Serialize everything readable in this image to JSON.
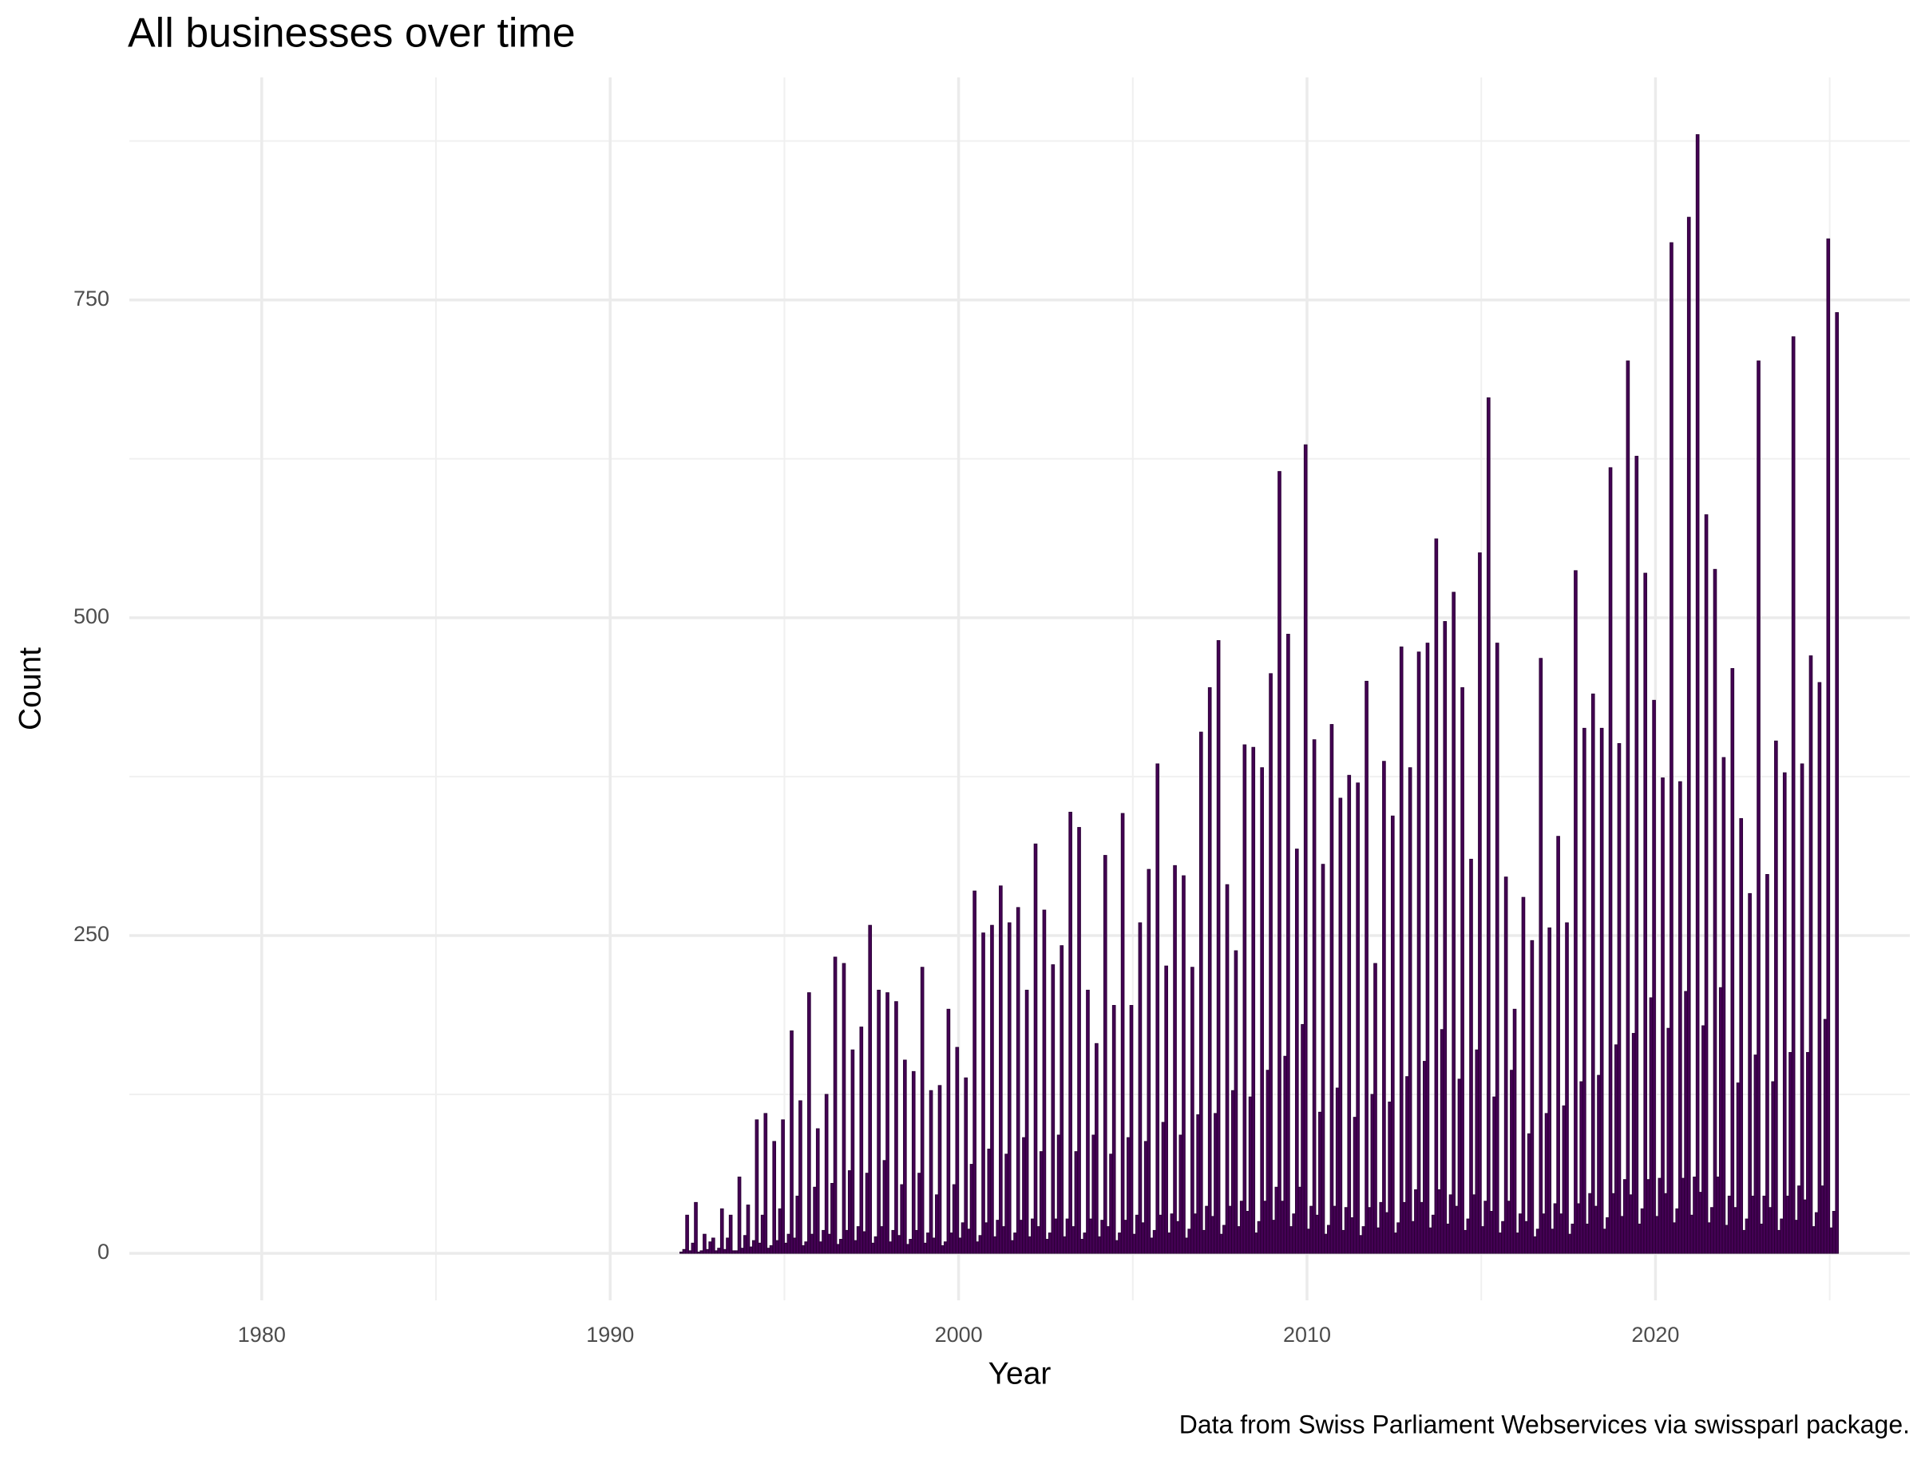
{
  "chart_data": {
    "type": "histogram",
    "title": "All businesses over time",
    "x_label": "Year",
    "y_label": "Count",
    "caption": "Data from Swiss Parliament Webservices via swissparl package.",
    "color": "#440154",
    "edge_color": "#2b0036",
    "grid": true,
    "xlim": [
      1976.2,
      2027.3
    ],
    "ylim": [
      -37,
      925
    ],
    "xticks": [
      1980,
      1990,
      2000,
      2010,
      2020
    ],
    "yticks": [
      0,
      250,
      500,
      750
    ],
    "xminor": [
      1975,
      1985,
      1995,
      2005,
      2015,
      2025
    ],
    "yminor": [
      125,
      375,
      625,
      875
    ],
    "bins": [
      1992,
      1992.0833,
      1992.1667,
      1992.25,
      1992.3333,
      1992.4167,
      1992.5,
      1992.5833,
      1992.6667,
      1992.75,
      1992.8333,
      1992.9167,
      1993,
      1993.0833,
      1993.1667,
      1993.25,
      1993.3333,
      1993.4167,
      1993.5,
      1993.5833,
      1993.6667,
      1993.75,
      1993.8333,
      1993.9167,
      1994,
      1994.0833,
      1994.1667,
      1994.25,
      1994.3333,
      1994.4167,
      1994.5,
      1994.5833,
      1994.6667,
      1994.75,
      1994.8333,
      1994.9167,
      1995,
      1995.0833,
      1995.1667,
      1995.25,
      1995.3333,
      1995.4167,
      1995.5,
      1995.5833,
      1995.6667,
      1995.75,
      1995.8333,
      1995.9167,
      1996,
      1996.0833,
      1996.1667,
      1996.25,
      1996.3333,
      1996.4167,
      1996.5,
      1996.5833,
      1996.6667,
      1996.75,
      1996.8333,
      1996.9167,
      1997,
      1997.0833,
      1997.1667,
      1997.25,
      1997.3333,
      1997.4167,
      1997.5,
      1997.5833,
      1997.6667,
      1997.75,
      1997.8333,
      1997.9167,
      1998,
      1998.0833,
      1998.1667,
      1998.25,
      1998.3333,
      1998.4167,
      1998.5,
      1998.5833,
      1998.6667,
      1998.75,
      1998.8333,
      1998.9167,
      1999,
      1999.0833,
      1999.1667,
      1999.25,
      1999.3333,
      1999.4167,
      1999.5,
      1999.5833,
      1999.6667,
      1999.75,
      1999.8333,
      1999.9167,
      2000,
      2000.0833,
      2000.1667,
      2000.25,
      2000.3333,
      2000.4167,
      2000.5,
      2000.5833,
      2000.6667,
      2000.75,
      2000.8333,
      2000.9167,
      2001,
      2001.0833,
      2001.1667,
      2001.25,
      2001.3333,
      2001.4167,
      2001.5,
      2001.5833,
      2001.6667,
      2001.75,
      2001.8333,
      2001.9167,
      2002,
      2002.0833,
      2002.1667,
      2002.25,
      2002.3333,
      2002.4167,
      2002.5,
      2002.5833,
      2002.6667,
      2002.75,
      2002.8333,
      2002.9167,
      2003,
      2003.0833,
      2003.1667,
      2003.25,
      2003.3333,
      2003.4167,
      2003.5,
      2003.5833,
      2003.6667,
      2003.75,
      2003.8333,
      2003.9167,
      2004,
      2004.0833,
      2004.1667,
      2004.25,
      2004.3333,
      2004.4167,
      2004.5,
      2004.5833,
      2004.6667,
      2004.75,
      2004.8333,
      2004.9167,
      2005,
      2005.0833,
      2005.1667,
      2005.25,
      2005.3333,
      2005.4167,
      2005.5,
      2005.5833,
      2005.6667,
      2005.75,
      2005.8333,
      2005.9167,
      2006,
      2006.0833,
      2006.1667,
      2006.25,
      2006.3333,
      2006.4167,
      2006.5,
      2006.5833,
      2006.6667,
      2006.75,
      2006.8333,
      2006.9167,
      2007,
      2007.0833,
      2007.1667,
      2007.25,
      2007.3333,
      2007.4167,
      2007.5,
      2007.5833,
      2007.6667,
      2007.75,
      2007.8333,
      2007.9167,
      2008,
      2008.0833,
      2008.1667,
      2008.25,
      2008.3333,
      2008.4167,
      2008.5,
      2008.5833,
      2008.6667,
      2008.75,
      2008.8333,
      2008.9167,
      2009,
      2009.0833,
      2009.1667,
      2009.25,
      2009.3333,
      2009.4167,
      2009.5,
      2009.5833,
      2009.6667,
      2009.75,
      2009.8333,
      2009.9167,
      2010,
      2010.0833,
      2010.1667,
      2010.25,
      2010.3333,
      2010.4167,
      2010.5,
      2010.5833,
      2010.6667,
      2010.75,
      2010.8333,
      2010.9167,
      2011,
      2011.0833,
      2011.1667,
      2011.25,
      2011.3333,
      2011.4167,
      2011.5,
      2011.5833,
      2011.6667,
      2011.75,
      2011.8333,
      2011.9167,
      2012,
      2012.0833,
      2012.1667,
      2012.25,
      2012.3333,
      2012.4167,
      2012.5,
      2012.5833,
      2012.6667,
      2012.75,
      2012.8333,
      2012.9167,
      2013,
      2013.0833,
      2013.1667,
      2013.25,
      2013.3333,
      2013.4167,
      2013.5,
      2013.5833,
      2013.6667,
      2013.75,
      2013.8333,
      2013.9167,
      2014,
      2014.0833,
      2014.1667,
      2014.25,
      2014.3333,
      2014.4167,
      2014.5,
      2014.5833,
      2014.6667,
      2014.75,
      2014.8333,
      2014.9167,
      2015,
      2015.0833,
      2015.1667,
      2015.25,
      2015.3333,
      2015.4167,
      2015.5,
      2015.5833,
      2015.6667,
      2015.75,
      2015.8333,
      2015.9167,
      2016,
      2016.0833,
      2016.1667,
      2016.25,
      2016.3333,
      2016.4167,
      2016.5,
      2016.5833,
      2016.6667,
      2016.75,
      2016.8333,
      2016.9167,
      2017,
      2017.0833,
      2017.1667,
      2017.25,
      2017.3333,
      2017.4167,
      2017.5,
      2017.5833,
      2017.6667,
      2017.75,
      2017.8333,
      2017.9167,
      2018,
      2018.0833,
      2018.1667,
      2018.25,
      2018.3333,
      2018.4167,
      2018.5,
      2018.5833,
      2018.6667,
      2018.75,
      2018.8333,
      2018.9167,
      2019,
      2019.0833,
      2019.1667,
      2019.25,
      2019.3333,
      2019.4167,
      2019.5,
      2019.5833,
      2019.6667,
      2019.75,
      2019.8333,
      2019.9167,
      2020,
      2020.0833,
      2020.1667,
      2020.25,
      2020.3333,
      2020.4167,
      2020.5,
      2020.5833,
      2020.6667,
      2020.75,
      2020.8333,
      2020.9167,
      2021,
      2021.0833,
      2021.1667,
      2021.25,
      2021.3333,
      2021.4167,
      2021.5,
      2021.5833,
      2021.6667,
      2021.75,
      2021.8333,
      2021.9167,
      2022,
      2022.0833,
      2022.1667,
      2022.25,
      2022.3333,
      2022.4167,
      2022.5,
      2022.5833,
      2022.6667,
      2022.75,
      2022.8333,
      2022.9167,
      2023,
      2023.0833,
      2023.1667,
      2023.25,
      2023.3333,
      2023.4167,
      2023.5,
      2023.5833,
      2023.6667,
      2023.75,
      2023.8333,
      2023.9167,
      2024,
      2024.0833,
      2024.1667,
      2024.25,
      2024.3333,
      2024.4167,
      2024.5,
      2024.5833,
      2024.6667,
      2024.75,
      2024.8333,
      2024.9167,
      2025,
      2025.0833,
      2025.1667,
      2025.25
    ],
    "values": [
      1,
      3,
      30,
      2,
      8,
      40,
      1,
      2,
      15,
      3,
      9,
      12,
      2,
      4,
      35,
      3,
      12,
      30,
      2,
      2,
      60,
      4,
      14,
      38,
      5,
      10,
      105,
      8,
      30,
      110,
      4,
      6,
      88,
      10,
      35,
      105,
      8,
      15,
      175,
      12,
      45,
      120,
      6,
      9,
      205,
      15,
      52,
      98,
      9,
      18,
      125,
      15,
      55,
      233,
      7,
      11,
      228,
      18,
      65,
      160,
      10,
      21,
      178,
      17,
      63,
      258,
      8,
      13,
      207,
      21,
      73,
      205,
      9,
      18,
      198,
      14,
      54,
      152,
      7,
      11,
      143,
      18,
      63,
      225,
      8,
      16,
      128,
      12,
      46,
      132,
      6,
      9,
      192,
      16,
      54,
      162,
      12,
      24,
      138,
      19,
      70,
      285,
      9,
      14,
      252,
      24,
      82,
      258,
      13,
      26,
      289,
      21,
      78,
      260,
      10,
      16,
      272,
      26,
      91,
      207,
      13,
      27,
      322,
      21,
      80,
      270,
      11,
      16,
      227,
      27,
      93,
      242,
      13,
      27,
      347,
      21,
      80,
      335,
      11,
      16,
      207,
      27,
      93,
      165,
      13,
      26,
      313,
      21,
      78,
      195,
      10,
      16,
      346,
      26,
      91,
      195,
      15,
      30,
      260,
      24,
      88,
      302,
      12,
      18,
      385,
      30,
      103,
      226,
      16,
      31,
      305,
      25,
      93,
      297,
      12,
      19,
      225,
      31,
      109,
      410,
      18,
      37,
      445,
      29,
      110,
      482,
      15,
      22,
      290,
      37,
      128,
      238,
      21,
      41,
      400,
      33,
      123,
      398,
      16,
      25,
      382,
      41,
      144,
      456,
      26,
      52,
      615,
      41,
      155,
      487,
      21,
      31,
      318,
      52,
      180,
      636,
      19,
      37,
      404,
      30,
      111,
      306,
      15,
      22,
      416,
      37,
      130,
      358,
      18,
      36,
      376,
      28,
      107,
      370,
      14,
      21,
      450,
      36,
      125,
      228,
      20,
      40,
      387,
      32,
      119,
      344,
      16,
      24,
      477,
      40,
      139,
      382,
      25,
      50,
      473,
      40,
      151,
      480,
      20,
      30,
      562,
      50,
      176,
      497,
      23,
      46,
      520,
      37,
      137,
      445,
      18,
      27,
      310,
      46,
      160,
      551,
      21,
      41,
      673,
      33,
      123,
      480,
      16,
      25,
      296,
      41,
      144,
      192,
      16,
      31,
      280,
      25,
      94,
      246,
      13,
      19,
      468,
      31,
      110,
      256,
      19,
      39,
      328,
      31,
      116,
      260,
      15,
      23,
      537,
      39,
      135,
      413,
      23,
      47,
      440,
      37,
      140,
      413,
      19,
      28,
      618,
      47,
      164,
      401,
      29,
      58,
      702,
      46,
      173,
      627,
      23,
      35,
      535,
      58,
      201,
      435,
      29,
      59,
      374,
      47,
      177,
      795,
      24,
      35,
      371,
      59,
      206,
      815,
      30,
      60,
      880,
      48,
      179,
      581,
      24,
      36,
      538,
      60,
      209,
      390,
      22,
      45,
      460,
      36,
      134,
      342,
      18,
      27,
      283,
      45,
      156,
      702,
      23,
      45,
      298,
      36,
      135,
      403,
      18,
      27,
      378,
      45,
      158,
      721,
      26,
      53,
      385,
      42,
      158,
      470,
      21,
      32,
      449,
      53,
      184,
      798,
      20,
      33,
      740
    ]
  }
}
